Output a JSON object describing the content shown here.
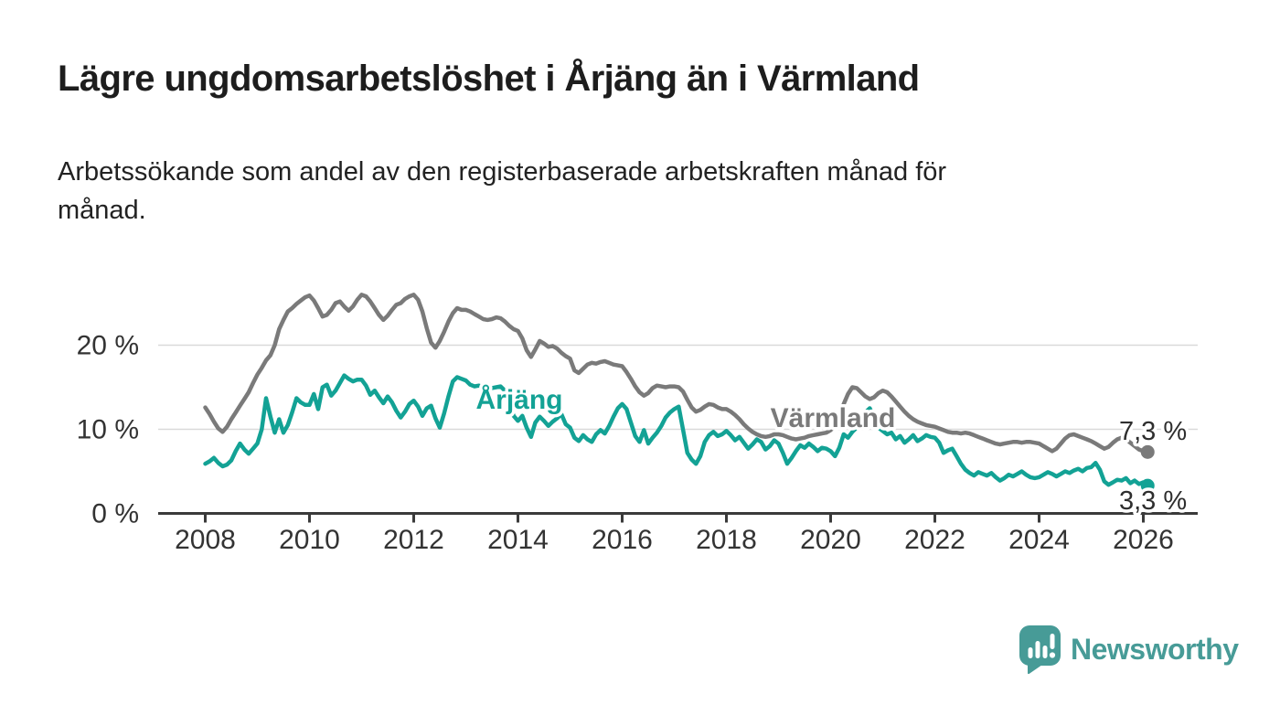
{
  "header": {
    "title": "Lägre ungdomsarbetslöshet i Årjäng än i Värmland",
    "subtitle": "Arbetssökande som andel av den registerbaserade arbetskraften månad för månad.",
    "subtitle_lines": [
      "Arbetssökande som andel av den registerbaserade arbetskraften månad för",
      "månad."
    ]
  },
  "footer": {
    "brand": "Newsworthy"
  },
  "colors": {
    "arjang": "#13a295",
    "varmland": "#7a7a7a",
    "grid": "#d9d9d9",
    "axis": "#3a3a3a",
    "tick_text": "#333333",
    "value_text": "#2e2e2e",
    "logo": "#479b97"
  },
  "chart_data": {
    "type": "line",
    "title": "Lägre ungdomsarbetslöshet i Årjäng än i Värmland",
    "xlabel": "",
    "ylabel": "",
    "grid": "horizontal",
    "legend_position": "inline-labels",
    "x_start_year": 2008,
    "x_points_per_year": 12,
    "x_end": "2026-02",
    "ylim": [
      0,
      27.5
    ],
    "yticks": [
      {
        "value": 0,
        "label": "0 %"
      },
      {
        "value": 10,
        "label": "10 %"
      },
      {
        "value": 20,
        "label": "20 %"
      }
    ],
    "xticks": [
      {
        "value": 2008,
        "label": "2008"
      },
      {
        "value": 2010,
        "label": "2010"
      },
      {
        "value": 2012,
        "label": "2012"
      },
      {
        "value": 2014,
        "label": "2014"
      },
      {
        "value": 2016,
        "label": "2016"
      },
      {
        "value": 2018,
        "label": "2018"
      },
      {
        "value": 2020,
        "label": "2020"
      },
      {
        "value": 2022,
        "label": "2022"
      },
      {
        "value": 2024,
        "label": "2024"
      },
      {
        "value": 2026,
        "label": "2026"
      }
    ],
    "series": [
      {
        "name": "Värmland",
        "label": "Värmland",
        "end_label": "7,3 %",
        "end_value": 7.3,
        "color_key": "varmland",
        "values": [
          12.6,
          11.8,
          10.9,
          10.1,
          9.7,
          10.3,
          11.2,
          12.0,
          12.8,
          13.6,
          14.4,
          15.5,
          16.5,
          17.3,
          18.2,
          18.8,
          20.0,
          21.9,
          23.0,
          24.0,
          24.4,
          24.9,
          25.3,
          25.7,
          25.9,
          25.3,
          24.4,
          23.4,
          23.6,
          24.2,
          25.0,
          25.2,
          24.6,
          24.1,
          24.6,
          25.4,
          26.0,
          25.8,
          25.2,
          24.4,
          23.6,
          23.0,
          23.5,
          24.2,
          24.8,
          25.0,
          25.5,
          25.8,
          26.0,
          25.4,
          24.0,
          22.0,
          20.3,
          19.7,
          20.5,
          21.6,
          22.8,
          23.8,
          24.4,
          24.2,
          24.2,
          24.0,
          23.7,
          23.4,
          23.1,
          23.0,
          23.1,
          23.3,
          23.2,
          22.8,
          22.3,
          21.9,
          21.7,
          20.8,
          19.4,
          18.6,
          19.5,
          20.5,
          20.2,
          19.8,
          19.9,
          19.6,
          19.1,
          18.7,
          18.4,
          17.0,
          16.7,
          17.2,
          17.7,
          17.9,
          17.8,
          18.0,
          18.1,
          17.9,
          17.7,
          17.6,
          17.5,
          16.8,
          16.0,
          15.1,
          14.4,
          14.0,
          14.3,
          14.9,
          15.2,
          15.1,
          15.0,
          15.1,
          15.1,
          15.0,
          14.5,
          13.5,
          12.6,
          12.1,
          12.3,
          12.7,
          13.0,
          12.9,
          12.6,
          12.4,
          12.4,
          12.1,
          11.7,
          11.2,
          10.6,
          10.1,
          9.7,
          9.4,
          9.2,
          9.1,
          9.2,
          9.4,
          9.4,
          9.3,
          9.1,
          8.9,
          8.8,
          8.9,
          9.0,
          9.2,
          9.3,
          9.4,
          9.5,
          9.6,
          9.9,
          10.4,
          11.5,
          13.0,
          14.2,
          15.0,
          14.9,
          14.4,
          13.9,
          13.6,
          13.8,
          14.3,
          14.6,
          14.4,
          13.9,
          13.3,
          12.7,
          12.1,
          11.6,
          11.2,
          10.9,
          10.7,
          10.5,
          10.4,
          10.3,
          10.1,
          9.9,
          9.7,
          9.6,
          9.6,
          9.5,
          9.6,
          9.5,
          9.3,
          9.1,
          8.9,
          8.7,
          8.5,
          8.3,
          8.2,
          8.3,
          8.4,
          8.5,
          8.5,
          8.4,
          8.5,
          8.5,
          8.4,
          8.3,
          8.0,
          7.7,
          7.4,
          7.7,
          8.3,
          8.9,
          9.3,
          9.4,
          9.2,
          9.0,
          8.8,
          8.6,
          8.3,
          8.0,
          7.7,
          7.9,
          8.4,
          8.8,
          9.0,
          8.8,
          8.4,
          8.0,
          7.6,
          7.4,
          7.3
        ]
      },
      {
        "name": "Årjäng",
        "label": "Årjäng",
        "end_label": "3,3 %",
        "end_value": 3.3,
        "color_key": "arjang",
        "values": [
          5.9,
          6.2,
          6.6,
          6.0,
          5.6,
          5.8,
          6.3,
          7.4,
          8.3,
          7.6,
          7.1,
          7.7,
          8.3,
          10.0,
          13.7,
          11.5,
          9.6,
          11.2,
          9.6,
          10.5,
          12.0,
          13.7,
          13.2,
          12.9,
          12.9,
          14.2,
          12.4,
          15.0,
          15.3,
          14.0,
          14.6,
          15.5,
          16.4,
          16.0,
          15.7,
          15.9,
          15.9,
          15.2,
          14.1,
          14.6,
          13.8,
          13.1,
          13.9,
          13.2,
          12.2,
          11.4,
          12.1,
          13.0,
          13.4,
          12.7,
          11.6,
          12.5,
          12.8,
          11.3,
          10.2,
          11.9,
          13.9,
          15.7,
          16.2,
          16.0,
          15.8,
          15.3,
          15.1,
          15.2,
          15.0,
          15.1,
          14.9,
          15.0,
          15.1,
          14.6,
          13.0,
          11.6,
          11.0,
          11.6,
          10.2,
          9.1,
          10.8,
          11.5,
          11.0,
          10.4,
          10.9,
          11.3,
          11.8,
          10.6,
          10.2,
          9.0,
          8.6,
          9.3,
          8.8,
          8.5,
          9.4,
          9.9,
          9.5,
          10.4,
          11.5,
          12.5,
          13.0,
          12.4,
          10.8,
          9.2,
          8.5,
          9.9,
          8.3,
          9.0,
          9.6,
          10.4,
          11.4,
          12.0,
          12.4,
          12.7,
          10.0,
          7.2,
          6.4,
          5.9,
          6.8,
          8.5,
          9.3,
          9.7,
          9.2,
          9.4,
          9.8,
          9.3,
          8.7,
          9.1,
          8.4,
          7.7,
          8.2,
          8.8,
          8.5,
          7.6,
          8.0,
          8.7,
          8.3,
          7.2,
          5.9,
          6.6,
          7.4,
          8.1,
          7.8,
          8.3,
          7.9,
          7.4,
          7.8,
          7.7,
          7.4,
          6.8,
          7.8,
          9.4,
          9.0,
          9.7,
          10.2,
          11.0,
          12.0,
          12.5,
          11.4,
          10.2,
          9.8,
          9.4,
          9.6,
          8.8,
          9.2,
          8.4,
          8.8,
          9.3,
          8.6,
          8.9,
          9.3,
          9.1,
          9.0,
          8.4,
          7.2,
          7.5,
          7.7,
          6.8,
          5.9,
          5.2,
          4.8,
          4.5,
          4.9,
          4.7,
          4.5,
          4.8,
          4.3,
          3.9,
          4.2,
          4.6,
          4.4,
          4.7,
          5.0,
          4.6,
          4.3,
          4.2,
          4.3,
          4.6,
          4.9,
          4.7,
          4.4,
          4.7,
          5.0,
          4.8,
          5.1,
          5.3,
          5.0,
          5.4,
          5.5,
          6.0,
          5.2,
          3.8,
          3.4,
          3.7,
          4.0,
          3.9,
          4.2,
          3.6,
          3.9,
          3.5,
          3.7,
          3.3
        ]
      }
    ]
  }
}
